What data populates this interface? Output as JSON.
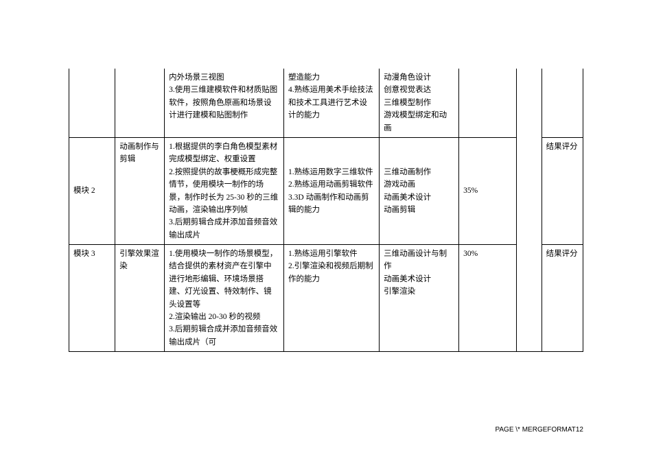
{
  "footer": "PAGE   \\* MERGEFORMAT12",
  "rows": [
    {
      "col_a": "",
      "col_b": "",
      "col_c": "内外场景三视图\n3.使用三维建模软件和材质贴图软件，按照角色原画和场景设计进行建模和贴图制作",
      "col_d": "塑造能力\n4.熟练运用美术手绘技法和技术工具进行艺术设计的能力",
      "col_e": "动漫角色设计\n创意视觉表达\n三维模型制作\n游戏模型绑定和动画",
      "col_f": "",
      "col_g": "",
      "col_h": ""
    },
    {
      "col_a": "模块 2",
      "col_b": "动画制作与剪辑",
      "col_c": "1.根据提供的李白角色模型素材完成模型绑定、权重设置\n2.按照提供的故事梗概形成完整情节，使用模块一制作的场景，制作时长为 25-30 秒的三维动画，渲染输出序列帧\n3.后期剪辑合成并添加音频音效输出成片",
      "col_d": "1.熟练运用数字三维软件\n2.熟练运用动画剪辑软件\n3.3D 动画制作和动画剪辑的能力",
      "col_e": "三维动画制作\n游戏动画\n动画美术设计\n动画剪辑",
      "col_f": "35%",
      "col_g": "",
      "col_h": "结果评分"
    },
    {
      "col_a": "模块 3",
      "col_b": "引擎效果渲染",
      "col_c": "1.使用模块一制作的场景模型，结合提供的素材资产在引擎中进行地形编辑、环境场景搭建、灯光设置、特效制作、镜头设置等\n2.渲染输出 20-30 秒的视频\n3.后期剪辑合成并添加音频音效输出成片（可",
      "col_d": "1.熟练运用引擎软件\n2.引擎渲染和视频后期制作的能力",
      "col_e": "三维动画设计与制作\n动画美术设计\n引擎渲染",
      "col_f": "30%",
      "col_g": "",
      "col_h": "结果评分"
    }
  ]
}
